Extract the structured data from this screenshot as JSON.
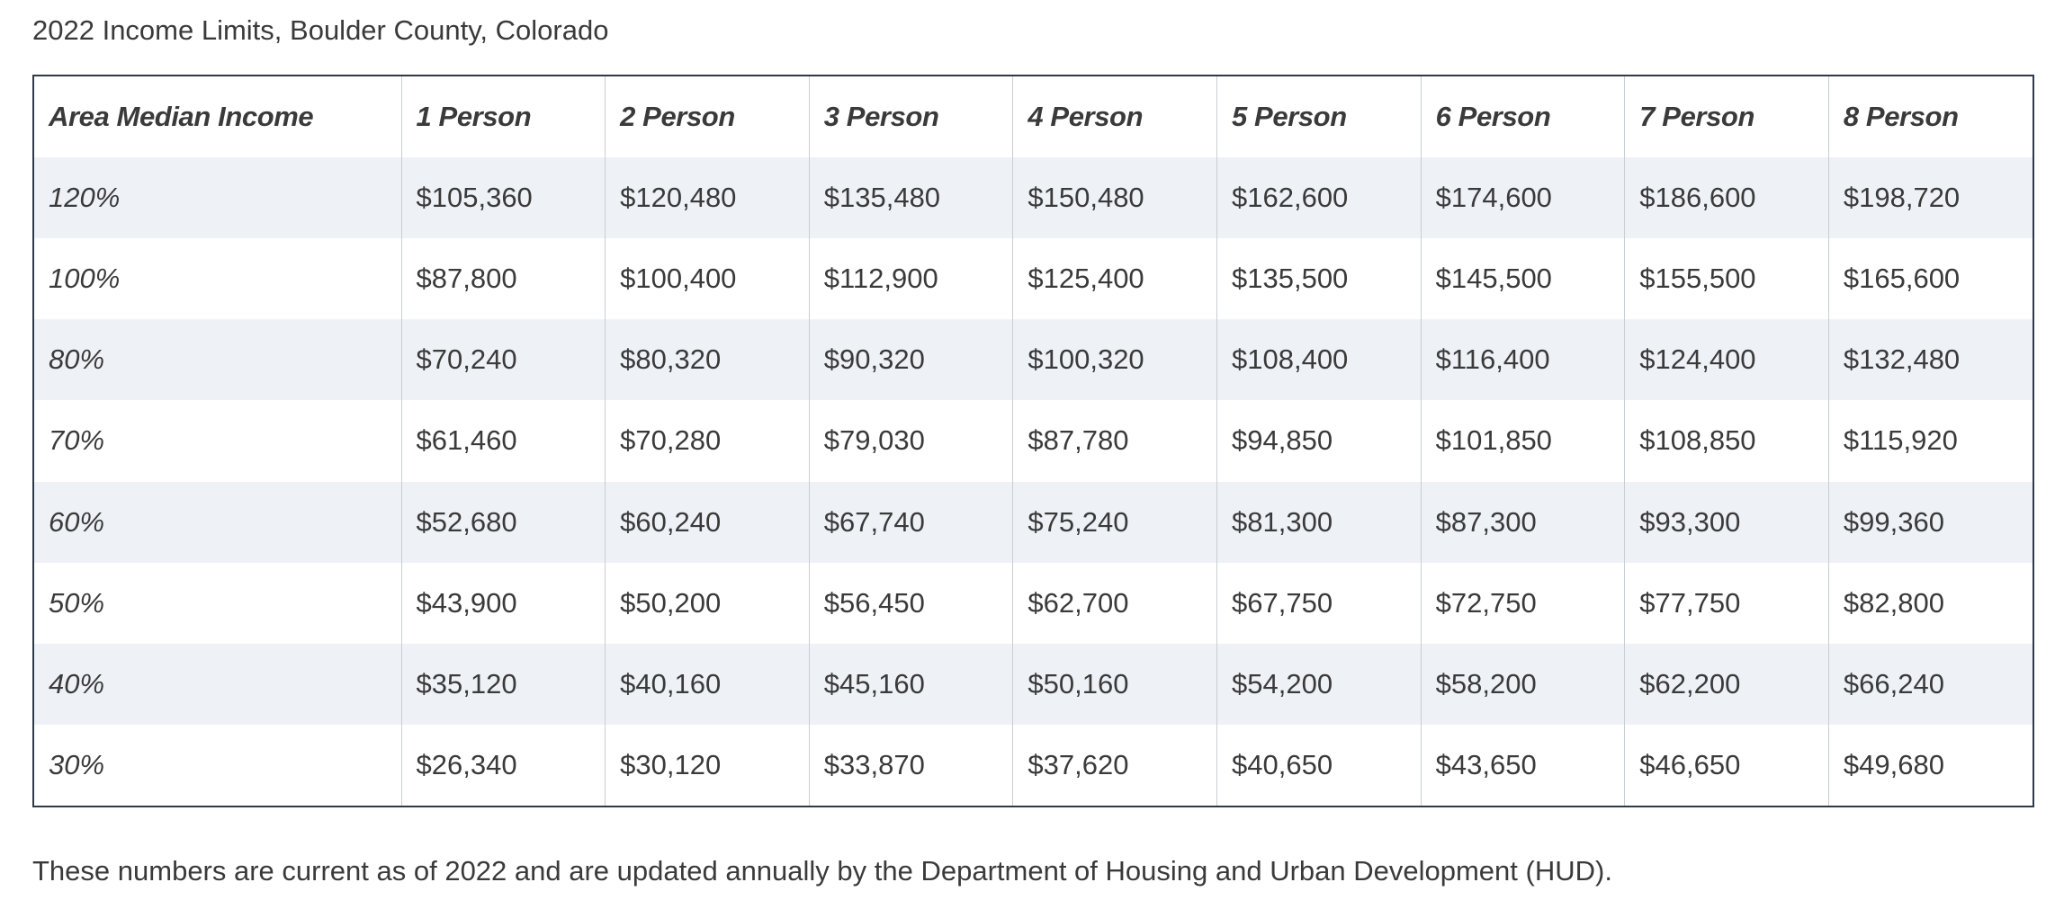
{
  "caption": "2022 Income Limits, Boulder County, Colorado",
  "table": {
    "headers": [
      "Area Median Income",
      "1 Person",
      "2 Person",
      "3 Person",
      "4 Person",
      "5 Person",
      "6 Person",
      "7 Person",
      "8 Person"
    ],
    "rows": [
      [
        "120%",
        "$105,360",
        "$120,480",
        "$135,480",
        "$150,480",
        "$162,600",
        "$174,600",
        "$186,600",
        "$198,720"
      ],
      [
        "100%",
        "$87,800",
        "$100,400",
        "$112,900",
        "$125,400",
        "$135,500",
        "$145,500",
        "$155,500",
        "$165,600"
      ],
      [
        "80%",
        "$70,240",
        "$80,320",
        "$90,320",
        "$100,320",
        "$108,400",
        "$116,400",
        "$124,400",
        "$132,480"
      ],
      [
        "70%",
        "$61,460",
        "$70,280",
        "$79,030",
        "$87,780",
        "$94,850",
        "$101,850",
        "$108,850",
        "$115,920"
      ],
      [
        "60%",
        "$52,680",
        "$60,240",
        "$67,740",
        "$75,240",
        "$81,300",
        "$87,300",
        "$93,300",
        "$99,360"
      ],
      [
        "50%",
        "$43,900",
        "$50,200",
        "$56,450",
        "$62,700",
        "$67,750",
        "$72,750",
        "$77,750",
        "$82,800"
      ],
      [
        "40%",
        "$35,120",
        "$40,160",
        "$45,160",
        "$50,160",
        "$54,200",
        "$58,200",
        "$62,200",
        "$66,240"
      ],
      [
        "30%",
        "$26,340",
        "$30,120",
        "$33,870",
        "$37,620",
        "$40,650",
        "$43,650",
        "$46,650",
        "$49,680"
      ]
    ]
  },
  "footnote": "These numbers are current as of 2022 and are updated annually by the Department of Housing and Urban Development (HUD).",
  "colors": {
    "text": "#3a3a3a",
    "border": "#2e3a47",
    "stripe": "#eef2f7"
  }
}
